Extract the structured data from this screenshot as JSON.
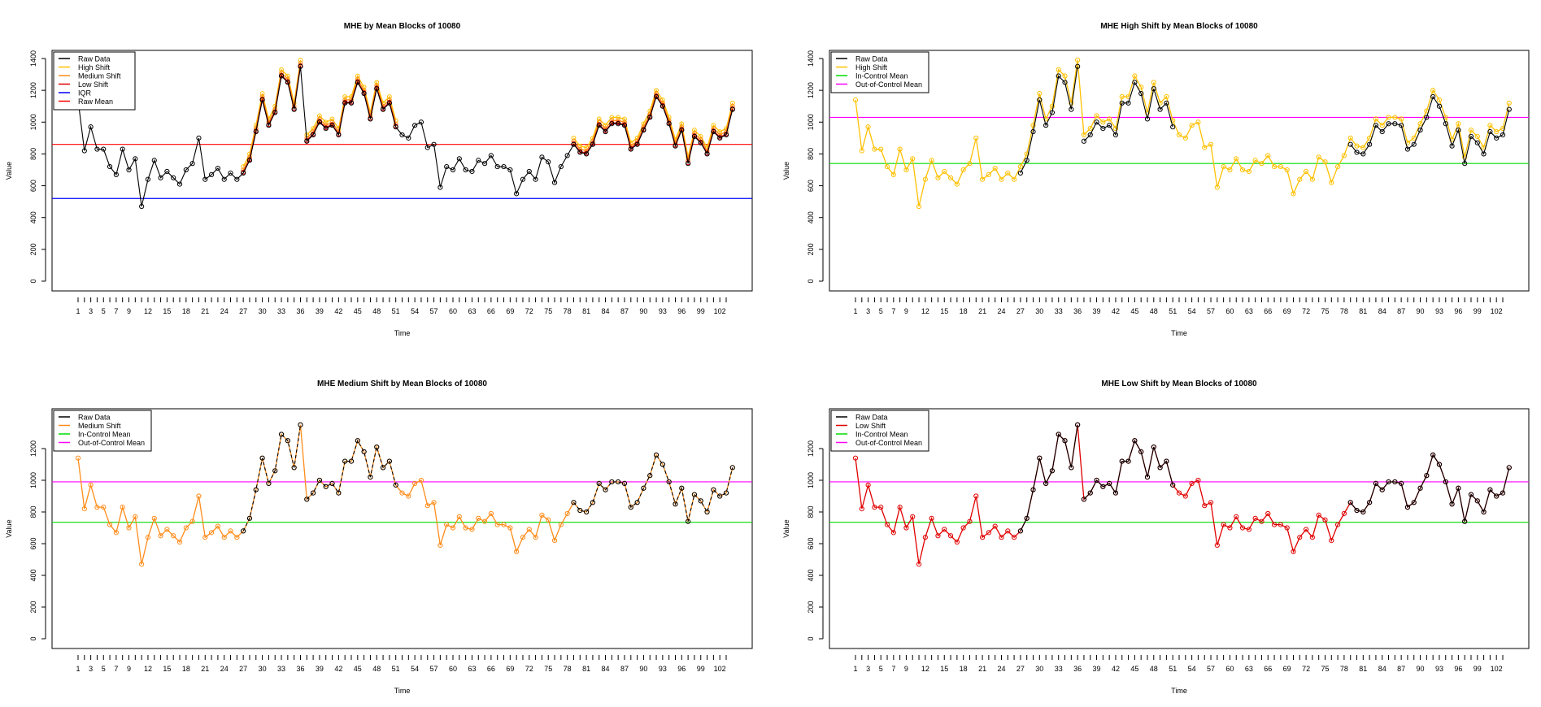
{
  "chart_data": [
    {
      "type": "line",
      "title": "MHE by Mean Blocks of 10080",
      "xlabel": "Time",
      "ylabel": "Value",
      "ylim": [
        0,
        1400
      ],
      "yticks": [
        0,
        200,
        400,
        600,
        800,
        1000,
        1200,
        1400
      ],
      "xlim": [
        1,
        103
      ],
      "xtick_labels": [
        "1",
        "3",
        "5",
        "7",
        "9",
        "12",
        "15",
        "18",
        "21",
        "24",
        "27",
        "30",
        "33",
        "36",
        "39",
        "42",
        "45",
        "48",
        "51",
        "54",
        "57",
        "60",
        "63",
        "66",
        "69",
        "72",
        "75",
        "78",
        "81",
        "84",
        "87",
        "90",
        "93",
        "96",
        "99",
        "102"
      ],
      "legend_position": "top-left",
      "legend": [
        {
          "label": "Raw Data",
          "color": "#000000"
        },
        {
          "label": "High Shift",
          "color": "#ffc000"
        },
        {
          "label": "Medium Shift",
          "color": "#ff8c1a"
        },
        {
          "label": "Low Shift",
          "color": "#e00000"
        },
        {
          "label": "IQR",
          "color": "#0000ff"
        },
        {
          "label": "Raw Mean",
          "color": "#ff0000"
        }
      ],
      "hlines": [
        {
          "name": "Raw Mean",
          "value": 860,
          "color": "#ff0000"
        },
        {
          "name": "IQR",
          "value": 520,
          "color": "#0000ff"
        }
      ],
      "variant": "overlay"
    },
    {
      "type": "line",
      "title": "MHE High Shift by Mean Blocks of 10080",
      "xlabel": "Time",
      "ylabel": "Value",
      "ylim": [
        0,
        1400
      ],
      "yticks": [
        0,
        200,
        400,
        600,
        800,
        1000,
        1200,
        1400
      ],
      "xlim": [
        1,
        103
      ],
      "xtick_labels": [
        "1",
        "3",
        "5",
        "7",
        "9",
        "12",
        "15",
        "18",
        "21",
        "24",
        "27",
        "30",
        "33",
        "36",
        "39",
        "42",
        "45",
        "48",
        "51",
        "54",
        "57",
        "60",
        "63",
        "66",
        "69",
        "72",
        "75",
        "78",
        "81",
        "84",
        "87",
        "90",
        "93",
        "96",
        "99",
        "102"
      ],
      "legend_position": "top-left",
      "legend": [
        {
          "label": "Raw Data",
          "color": "#000000"
        },
        {
          "label": "High Shift",
          "color": "#ffc000"
        },
        {
          "label": "In-Control Mean",
          "color": "#00dd00"
        },
        {
          "label": "Out-of-Control Mean",
          "color": "#ff00ff"
        }
      ],
      "hlines": [
        {
          "name": "In-Control Mean",
          "value": 740,
          "color": "#00dd00"
        },
        {
          "name": "Out-of-Control Mean",
          "value": 1030,
          "color": "#ff00ff"
        }
      ],
      "variant": "shift",
      "shift_color": "#ffc000",
      "shift_offset": 40
    },
    {
      "type": "line",
      "title": "MHE Medium Shift by Mean Blocks of 10080",
      "xlabel": "Time",
      "ylabel": "Value",
      "ylim": [
        0,
        1400
      ],
      "yticks": [
        0,
        200,
        400,
        600,
        800,
        1000,
        1200
      ],
      "xlim": [
        1,
        103
      ],
      "xtick_labels": [
        "1",
        "3",
        "5",
        "7",
        "9",
        "12",
        "15",
        "18",
        "21",
        "24",
        "27",
        "30",
        "33",
        "36",
        "39",
        "42",
        "45",
        "48",
        "51",
        "54",
        "57",
        "60",
        "63",
        "66",
        "69",
        "72",
        "75",
        "78",
        "81",
        "84",
        "87",
        "90",
        "93",
        "96",
        "99",
        "102"
      ],
      "legend_position": "top-left",
      "legend": [
        {
          "label": "Raw Data",
          "color": "#000000"
        },
        {
          "label": "Medium Shift",
          "color": "#ff8c1a"
        },
        {
          "label": "In-Control Mean",
          "color": "#00dd00"
        },
        {
          "label": "Out-of-Control Mean",
          "color": "#ff00ff"
        }
      ],
      "hlines": [
        {
          "name": "In-Control Mean",
          "value": 735,
          "color": "#00dd00"
        },
        {
          "name": "Out-of-Control Mean",
          "value": 990,
          "color": "#ff00ff"
        }
      ],
      "variant": "shift",
      "shift_color": "#ff8c1a",
      "shift_offset": 0
    },
    {
      "type": "line",
      "title": "MHE Low Shift by Mean Blocks of 10080",
      "xlabel": "Time",
      "ylabel": "Value",
      "ylim": [
        0,
        1400
      ],
      "yticks": [
        0,
        200,
        400,
        600,
        800,
        1000,
        1200
      ],
      "xlim": [
        1,
        103
      ],
      "xtick_labels": [
        "1",
        "3",
        "5",
        "7",
        "9",
        "12",
        "15",
        "18",
        "21",
        "24",
        "27",
        "30",
        "33",
        "36",
        "39",
        "42",
        "45",
        "48",
        "51",
        "54",
        "57",
        "60",
        "63",
        "66",
        "69",
        "72",
        "75",
        "78",
        "81",
        "84",
        "87",
        "90",
        "93",
        "96",
        "99",
        "102"
      ],
      "legend_position": "top-left",
      "legend": [
        {
          "label": "Raw Data",
          "color": "#000000"
        },
        {
          "label": "Low Shift",
          "color": "#e00000"
        },
        {
          "label": "In-Control Mean",
          "color": "#00dd00"
        },
        {
          "label": "Out-of-Control Mean",
          "color": "#ff00ff"
        }
      ],
      "hlines": [
        {
          "name": "In-Control Mean",
          "value": 735,
          "color": "#00dd00"
        },
        {
          "name": "Out-of-Control Mean",
          "value": 990,
          "color": "#ff00ff"
        }
      ],
      "variant": "shift",
      "shift_color": "#e00000",
      "shift_offset": 0
    }
  ],
  "series_values": [
    1140,
    820,
    970,
    830,
    830,
    720,
    670,
    830,
    700,
    770,
    470,
    640,
    760,
    650,
    690,
    650,
    610,
    700,
    740,
    900,
    640,
    670,
    710,
    640,
    680,
    640,
    680,
    760,
    940,
    1140,
    980,
    1060,
    1290,
    1250,
    1080,
    1350,
    880,
    920,
    1000,
    960,
    980,
    920,
    1120,
    1120,
    1250,
    1180,
    1020,
    1210,
    1080,
    1120,
    970,
    920,
    900,
    980,
    1000,
    840,
    860,
    590,
    720,
    700,
    770,
    700,
    690,
    760,
    740,
    790,
    720,
    720,
    700,
    550,
    640,
    690,
    640,
    780,
    750,
    620,
    720,
    790,
    860,
    810,
    800,
    860,
    980,
    940,
    990,
    990,
    980,
    830,
    860,
    950,
    1030,
    1160,
    1100,
    990,
    850,
    950,
    740,
    910,
    870,
    800,
    940,
    900,
    920,
    1080
  ],
  "shift_segments": [
    [
      27,
      36
    ],
    [
      37,
      51
    ],
    [
      79,
      104
    ]
  ]
}
